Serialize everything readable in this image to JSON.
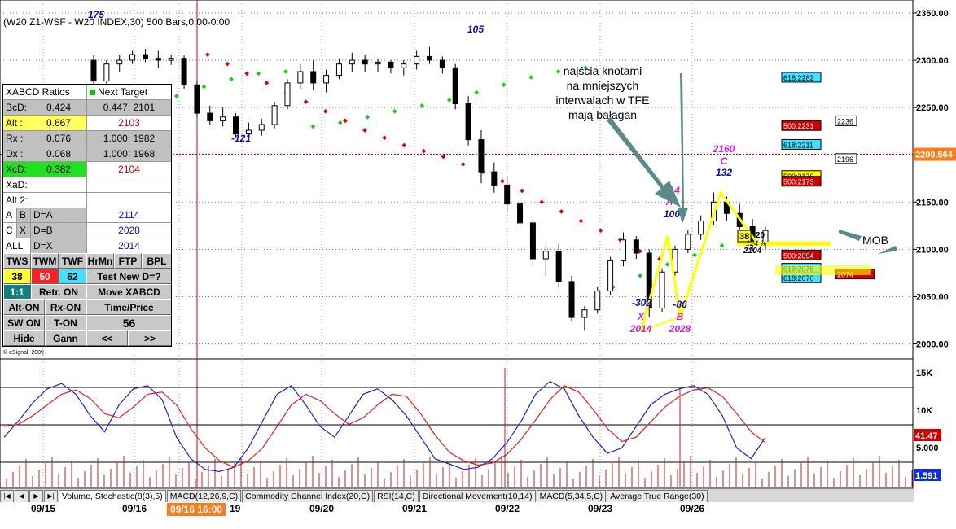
{
  "chart_title": "(W20 Z1-WSF - W20 INDEX,30) 500 Bars,0:00-0:00",
  "annotation_text": [
    "najścia knotami",
    "na mniejszych",
    "interwalach w TFE",
    "mają bałagan"
  ],
  "mob_label": "MOB",
  "copyright": "© eSignal, 2009",
  "price_axis": {
    "ticks": [
      "2350.00",
      "2300.00",
      "2250.00",
      "2200.00",
      "2150.00",
      "2100.00",
      "2050.00",
      "2000.00"
    ],
    "current_price": "2200.564"
  },
  "indicator_axis": {
    "ticks": [
      "15K",
      "10K",
      "5.000"
    ],
    "value1": "41.47",
    "value2": "1.591"
  },
  "x_axis": {
    "labels": [
      "09/15",
      "09/16",
      "09/16 16:00",
      "19",
      "09/20",
      "09/21",
      "09/22",
      "09/23",
      "09/26"
    ]
  },
  "tabs": [
    "Volume, Stochastic(8(3),5)",
    "MACD(12,26,9,C)",
    "Commodity Channel Index(20,C)",
    "RSI(14,C)",
    "Directional Movement(10,14)",
    "MACD(5,34,5,C)",
    "Average True Range(30)"
  ],
  "xabcd": {
    "header_left": "XABCD Ratios",
    "header_right": "Next Target",
    "rows": [
      {
        "label": "BcD:",
        "value": "0.424",
        "target": "0.447: 2101"
      },
      {
        "label": "Alt :",
        "value": "0.667",
        "target": "2103"
      },
      {
        "label": "Rx :",
        "value": "0.076",
        "target": "1.000: 1982"
      },
      {
        "label": "Dx :",
        "value": "0.068",
        "target": "1.000: 1968"
      },
      {
        "label": "XcD:",
        "value": "0.382",
        "target": "2104"
      },
      {
        "label": "XaD:",
        "value": "",
        "target": ""
      },
      {
        "label": "Alt 2:",
        "value": "",
        "target": ""
      }
    ],
    "dlines": [
      {
        "a": "A",
        "b": "B",
        "eq": "D=A",
        "val": "2114"
      },
      {
        "a": "C",
        "b": "X",
        "eq": "D=B",
        "val": "2028"
      },
      {
        "a": "ALL",
        "b": "",
        "eq": "D=X",
        "val": "2014"
      }
    ],
    "buttons": {
      "tws": "TWS",
      "twm": "TWM",
      "twf": "TWF",
      "hrmn": "HrMn",
      "ftp": "FTP",
      "bpl": "BPL",
      "v38": "38",
      "v50": "50",
      "v62": "62",
      "test_new": "Test New D=?",
      "ratio": "1:1",
      "retr_on": "Retr. ON",
      "move_xabcd": "Move XABCD",
      "alt_on": "Alt-ON",
      "rx_on": "Rx-ON",
      "time_price": "Time/Price",
      "sw_on": "SW ON",
      "t_on": "T-ON",
      "count": "56",
      "hide": "Hide",
      "gann": "Gann",
      "prev": "<<",
      "next": ">>"
    }
  },
  "pattern": {
    "X": {
      "letter": "X",
      "price": "2014",
      "swing": "-302"
    },
    "A": {
      "letter": "A",
      "price": "2114",
      "swing": "100"
    },
    "B": {
      "letter": "B",
      "price": "2028",
      "swing": "-86"
    },
    "C": {
      "letter": "C",
      "price": "2160",
      "swing": "132"
    },
    "extra_labels": [
      "175",
      "-121",
      "105",
      "38",
      "2104",
      "124 %",
      "20"
    ]
  },
  "levels": {
    "right_labels": [
      {
        "text": "618:2282",
        "price": 2282,
        "color": "#40e0ff"
      },
      {
        "text": "500:2231",
        "price": 2231,
        "color": "#d00000"
      },
      {
        "text": "2236",
        "price": 2236,
        "color": "#ffffff"
      },
      {
        "text": "618:2211",
        "price": 2211,
        "color": "#40e0ff"
      },
      {
        "text": "2196",
        "price": 2196,
        "color": "#ffffff"
      },
      {
        "text": "500:2176",
        "price": 2178,
        "color": "#ffff00"
      },
      {
        "text": "500:2173",
        "price": 2172,
        "color": "#d00000"
      },
      {
        "text": "500:2094",
        "price": 2094,
        "color": "#d00000"
      },
      {
        "text": "618:2078",
        "price": 2080,
        "color": "#40e0ff"
      },
      {
        "text": "2074",
        "price": 2074,
        "color": "#d00000"
      },
      {
        "text": "618:2070",
        "price": 2070,
        "color": "#40e0ff"
      }
    ]
  },
  "chart_data": {
    "type": "candlestick",
    "price_ylim": [
      1985,
      2362
    ],
    "current_price_line": 2200.564,
    "candles": [
      [
        2300,
        2306,
        2270,
        2278
      ],
      [
        2278,
        2300,
        2272,
        2296
      ],
      [
        2296,
        2306,
        2288,
        2300
      ],
      [
        2300,
        2310,
        2296,
        2306
      ],
      [
        2306,
        2312,
        2298,
        2302
      ],
      [
        2302,
        2310,
        2292,
        2300
      ],
      [
        2300,
        2306,
        2295,
        2302
      ],
      [
        2302,
        2305,
        2270,
        2274
      ],
      [
        2274,
        2278,
        2240,
        2244
      ],
      [
        2244,
        2252,
        2232,
        2236
      ],
      [
        2236,
        2250,
        2230,
        2240
      ],
      [
        2240,
        2244,
        2218,
        2222
      ],
      [
        2222,
        2234,
        2214,
        2226
      ],
      [
        2226,
        2238,
        2220,
        2232
      ],
      [
        2232,
        2256,
        2228,
        2252
      ],
      [
        2252,
        2280,
        2248,
        2276
      ],
      [
        2276,
        2296,
        2270,
        2288
      ],
      [
        2288,
        2300,
        2268,
        2276
      ],
      [
        2276,
        2290,
        2266,
        2284
      ],
      [
        2284,
        2302,
        2280,
        2296
      ],
      [
        2296,
        2308,
        2288,
        2300
      ],
      [
        2300,
        2306,
        2288,
        2296
      ],
      [
        2296,
        2302,
        2288,
        2298
      ],
      [
        2298,
        2300,
        2286,
        2292
      ],
      [
        2292,
        2300,
        2284,
        2296
      ],
      [
        2296,
        2310,
        2290,
        2304
      ],
      [
        2304,
        2314,
        2296,
        2300
      ],
      [
        2300,
        2304,
        2286,
        2292
      ],
      [
        2292,
        2296,
        2248,
        2254
      ],
      [
        2254,
        2262,
        2210,
        2216
      ],
      [
        2216,
        2226,
        2170,
        2182
      ],
      [
        2182,
        2192,
        2160,
        2168
      ],
      [
        2168,
        2176,
        2140,
        2148
      ],
      [
        2148,
        2158,
        2122,
        2128
      ],
      [
        2128,
        2132,
        2082,
        2090
      ],
      [
        2090,
        2104,
        2072,
        2098
      ],
      [
        2098,
        2106,
        2060,
        2066
      ],
      [
        2066,
        2072,
        2024,
        2028
      ],
      [
        2028,
        2040,
        2014,
        2036
      ],
      [
        2036,
        2060,
        2032,
        2056
      ],
      [
        2056,
        2092,
        2052,
        2088
      ],
      [
        2088,
        2118,
        2082,
        2110
      ],
      [
        2110,
        2114,
        2090,
        2096
      ],
      [
        2096,
        2100,
        2028,
        2038
      ],
      [
        2038,
        2080,
        2034,
        2076
      ],
      [
        2076,
        2104,
        2072,
        2100
      ],
      [
        2100,
        2120,
        2096,
        2116
      ],
      [
        2116,
        2136,
        2110,
        2130
      ],
      [
        2130,
        2160,
        2126,
        2150
      ],
      [
        2150,
        2156,
        2130,
        2138
      ],
      [
        2138,
        2148,
        2118,
        2124
      ],
      [
        2124,
        2132,
        2098,
        2106
      ],
      [
        2106,
        2124,
        2100,
        2120
      ]
    ],
    "red_trail": [
      2306,
      2296,
      2286,
      2276,
      2266,
      2256,
      2246,
      2236,
      2226,
      2218,
      2210,
      2204,
      2198,
      2190,
      2182,
      2172,
      2162,
      2150,
      2140,
      2130,
      2120,
      2110,
      2098,
      2090
    ],
    "green_trail": [
      2240,
      2250,
      2262,
      2272,
      2280,
      2286,
      2288,
      2230,
      2234,
      2240,
      2246,
      2252,
      2258,
      2266,
      2274,
      2282,
      2288,
      2292,
      2060,
      2072,
      2084,
      2094,
      2104,
      2110
    ],
    "stoch_k": [
      40,
      55,
      72,
      85,
      90,
      80,
      60,
      45,
      70,
      85,
      88,
      75,
      40,
      20,
      10,
      8,
      12,
      30,
      55,
      80,
      88,
      70,
      50,
      40,
      60,
      80,
      85,
      75,
      60,
      40,
      20,
      15,
      10,
      12,
      20,
      35,
      55,
      80,
      92,
      85,
      60,
      40,
      25,
      30,
      50,
      70,
      80,
      85,
      88,
      80,
      60,
      30,
      20,
      40
    ],
    "stoch_d": [
      50,
      52,
      60,
      70,
      80,
      84,
      76,
      62,
      58,
      68,
      80,
      82,
      70,
      48,
      30,
      18,
      12,
      18,
      30,
      50,
      70,
      80,
      74,
      62,
      52,
      58,
      70,
      80,
      78,
      62,
      42,
      26,
      18,
      14,
      16,
      24,
      38,
      56,
      75,
      88,
      82,
      66,
      48,
      36,
      40,
      54,
      68,
      78,
      84,
      86,
      78,
      62,
      45,
      35
    ]
  }
}
